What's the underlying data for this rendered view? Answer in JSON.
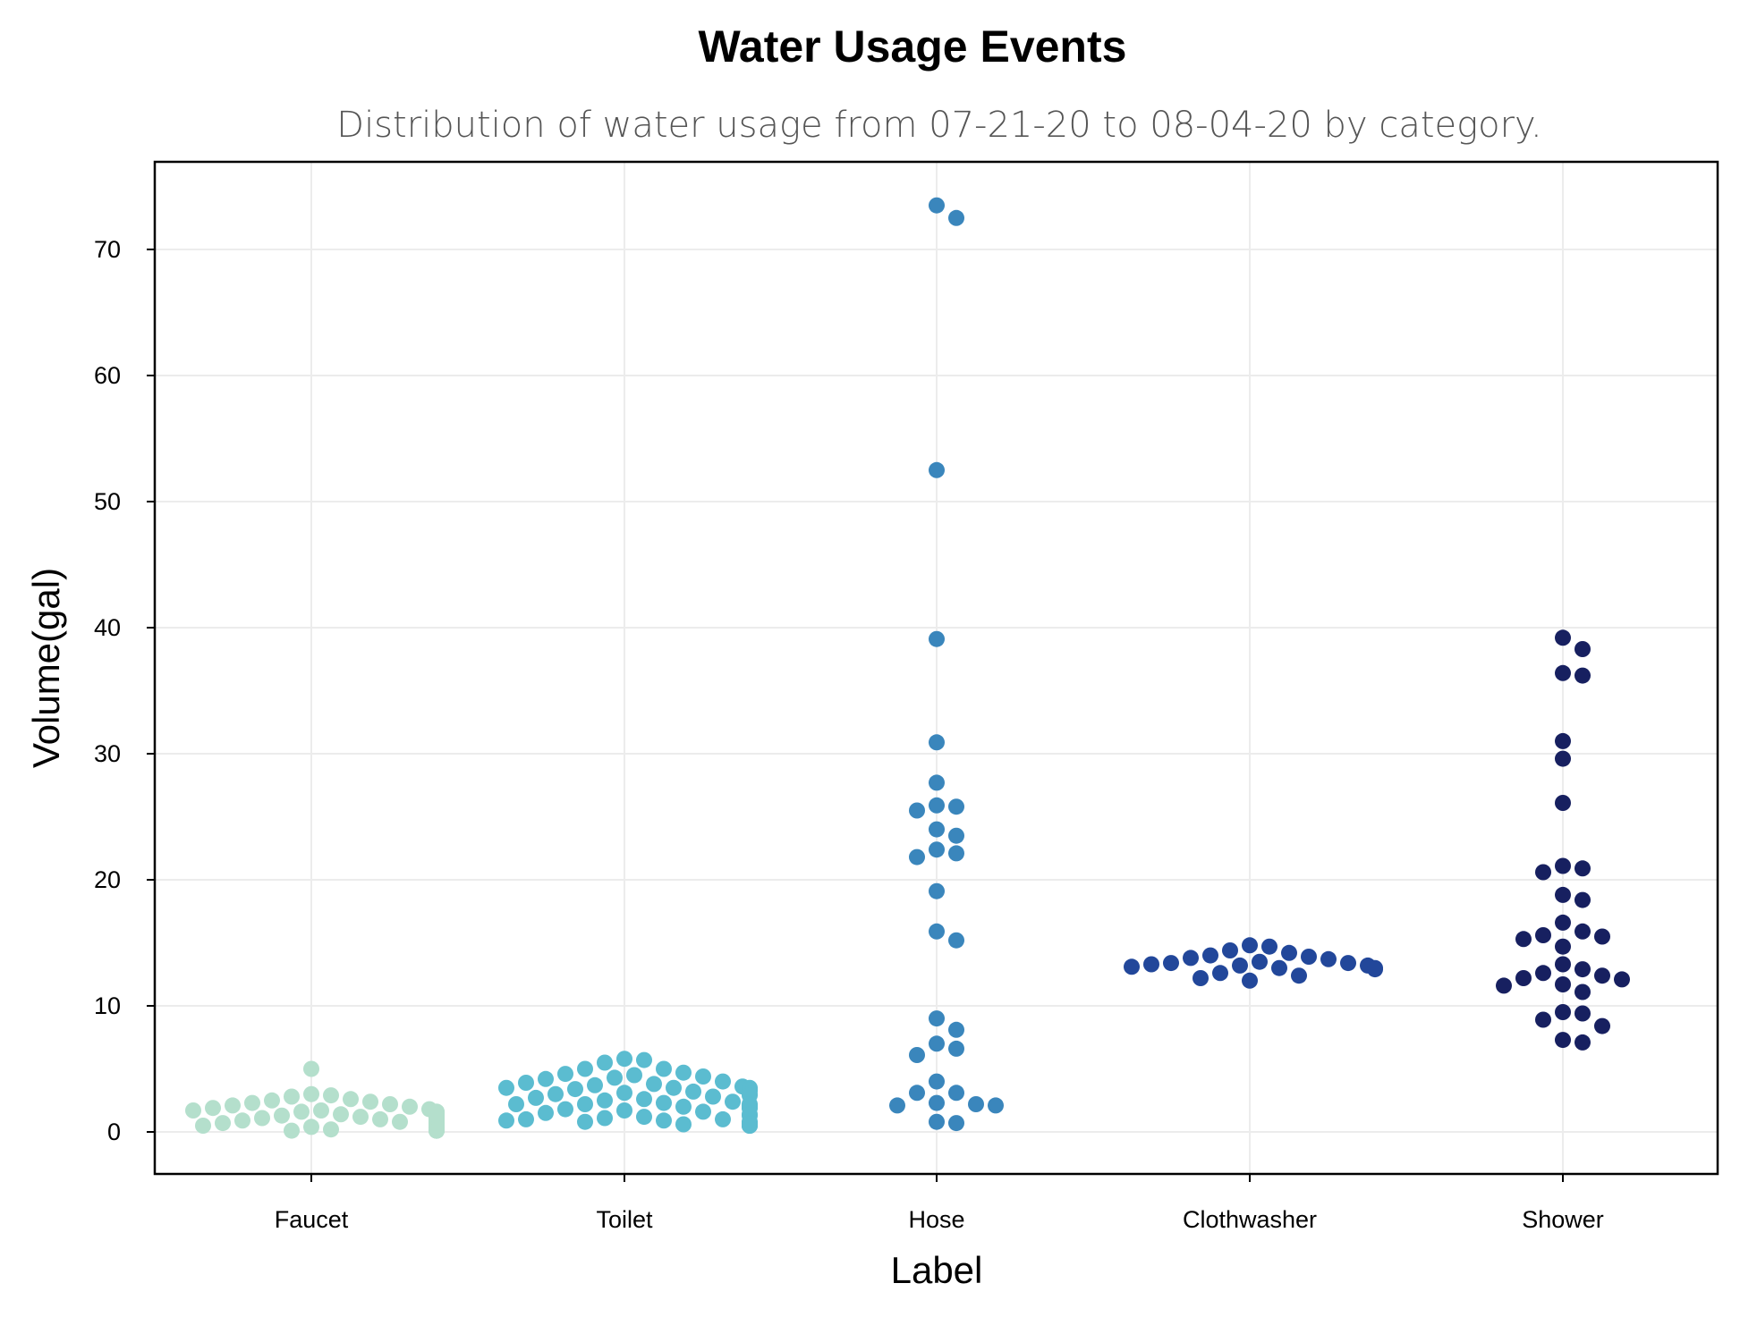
{
  "chart_data": {
    "type": "scatter",
    "subtype": "swarm",
    "title": "Water Usage Events",
    "subtitle": "Distribution of water usage from 07-21-20 to 08-04-20 by category.",
    "xlabel": "Label",
    "ylabel": "Volume(gal)",
    "ylim": [
      -3.5,
      77.5
    ],
    "yticks": [
      0,
      10,
      20,
      30,
      40,
      50,
      60,
      70
    ],
    "grid": true,
    "legend": "none",
    "categories": [
      "Faucet",
      "Toilet",
      "Hose",
      "Clothwasher",
      "Shower"
    ],
    "series": [
      {
        "category": "Faucet",
        "color": "#b4dfcc",
        "values": [
          5.0,
          3.0,
          2.9,
          2.8,
          2.6,
          2.5,
          2.4,
          2.3,
          2.2,
          2.1,
          2.0,
          1.9,
          1.8,
          1.7,
          1.7,
          1.6,
          1.6,
          1.6,
          1.5,
          1.5,
          1.5,
          1.5,
          1.4,
          1.4,
          1.4,
          1.3,
          1.3,
          1.2,
          1.2,
          1.1,
          1.1,
          1.0,
          1.0,
          0.9,
          0.9,
          0.8,
          0.8,
          0.7,
          0.7,
          0.6,
          0.6,
          0.6,
          0.5,
          0.5,
          0.5,
          0.4,
          0.4,
          0.4,
          0.3,
          0.3,
          0.3,
          0.3,
          0.2,
          0.2,
          0.2,
          0.2,
          0.2,
          0.1,
          0.1,
          0.1,
          0.1,
          0.1,
          0.1,
          0.1
        ]
      },
      {
        "category": "Toilet",
        "color": "#5bbcd0",
        "values": [
          5.8,
          5.7,
          5.5,
          5.0,
          5.0,
          4.7,
          4.6,
          4.5,
          4.4,
          4.3,
          4.2,
          4.0,
          3.9,
          3.8,
          3.7,
          3.6,
          3.5,
          3.5,
          3.5,
          3.4,
          3.4,
          3.4,
          3.3,
          3.3,
          3.2,
          3.1,
          3.0,
          3.0,
          2.9,
          2.8,
          2.7,
          2.6,
          2.5,
          2.4,
          2.3,
          2.2,
          2.2,
          2.2,
          2.1,
          2.1,
          2.1,
          2.0,
          2.0,
          2.0,
          1.9,
          1.9,
          1.8,
          1.7,
          1.6,
          1.5,
          1.4,
          1.3,
          1.2,
          1.1,
          1.0,
          1.0,
          0.9,
          0.9,
          0.8,
          0.8,
          0.7,
          0.7,
          0.6,
          0.6,
          0.6,
          0.6,
          0.6,
          0.5,
          0.5,
          0.5
        ]
      },
      {
        "category": "Hose",
        "color": "#3a86bc",
        "values": [
          73.5,
          72.5,
          52.5,
          39.1,
          30.9,
          27.7,
          25.9,
          25.8,
          25.5,
          24.0,
          23.5,
          22.4,
          22.1,
          21.8,
          19.1,
          15.9,
          15.2,
          9.0,
          8.1,
          7.0,
          6.6,
          6.1,
          4.0,
          3.1,
          3.1,
          2.3,
          2.2,
          2.1,
          2.1,
          0.8,
          0.7
        ]
      },
      {
        "category": "Clothwasher",
        "color": "#22479a",
        "values": [
          14.8,
          14.7,
          14.4,
          14.2,
          14.0,
          13.9,
          13.8,
          13.7,
          13.5,
          13.4,
          13.4,
          13.3,
          13.2,
          13.2,
          13.1,
          13.0,
          13.0,
          12.9,
          12.6,
          12.4,
          12.2,
          12.0
        ]
      },
      {
        "category": "Shower",
        "color": "#172060",
        "values": [
          39.2,
          38.3,
          36.4,
          36.2,
          31.0,
          29.6,
          26.1,
          21.1,
          20.9,
          20.6,
          18.8,
          18.4,
          16.6,
          15.9,
          15.6,
          15.5,
          15.3,
          14.7,
          13.3,
          12.9,
          12.6,
          12.4,
          12.2,
          12.1,
          11.7,
          11.6,
          11.1,
          9.5,
          9.4,
          8.9,
          8.4,
          7.3,
          7.1
        ]
      }
    ]
  }
}
